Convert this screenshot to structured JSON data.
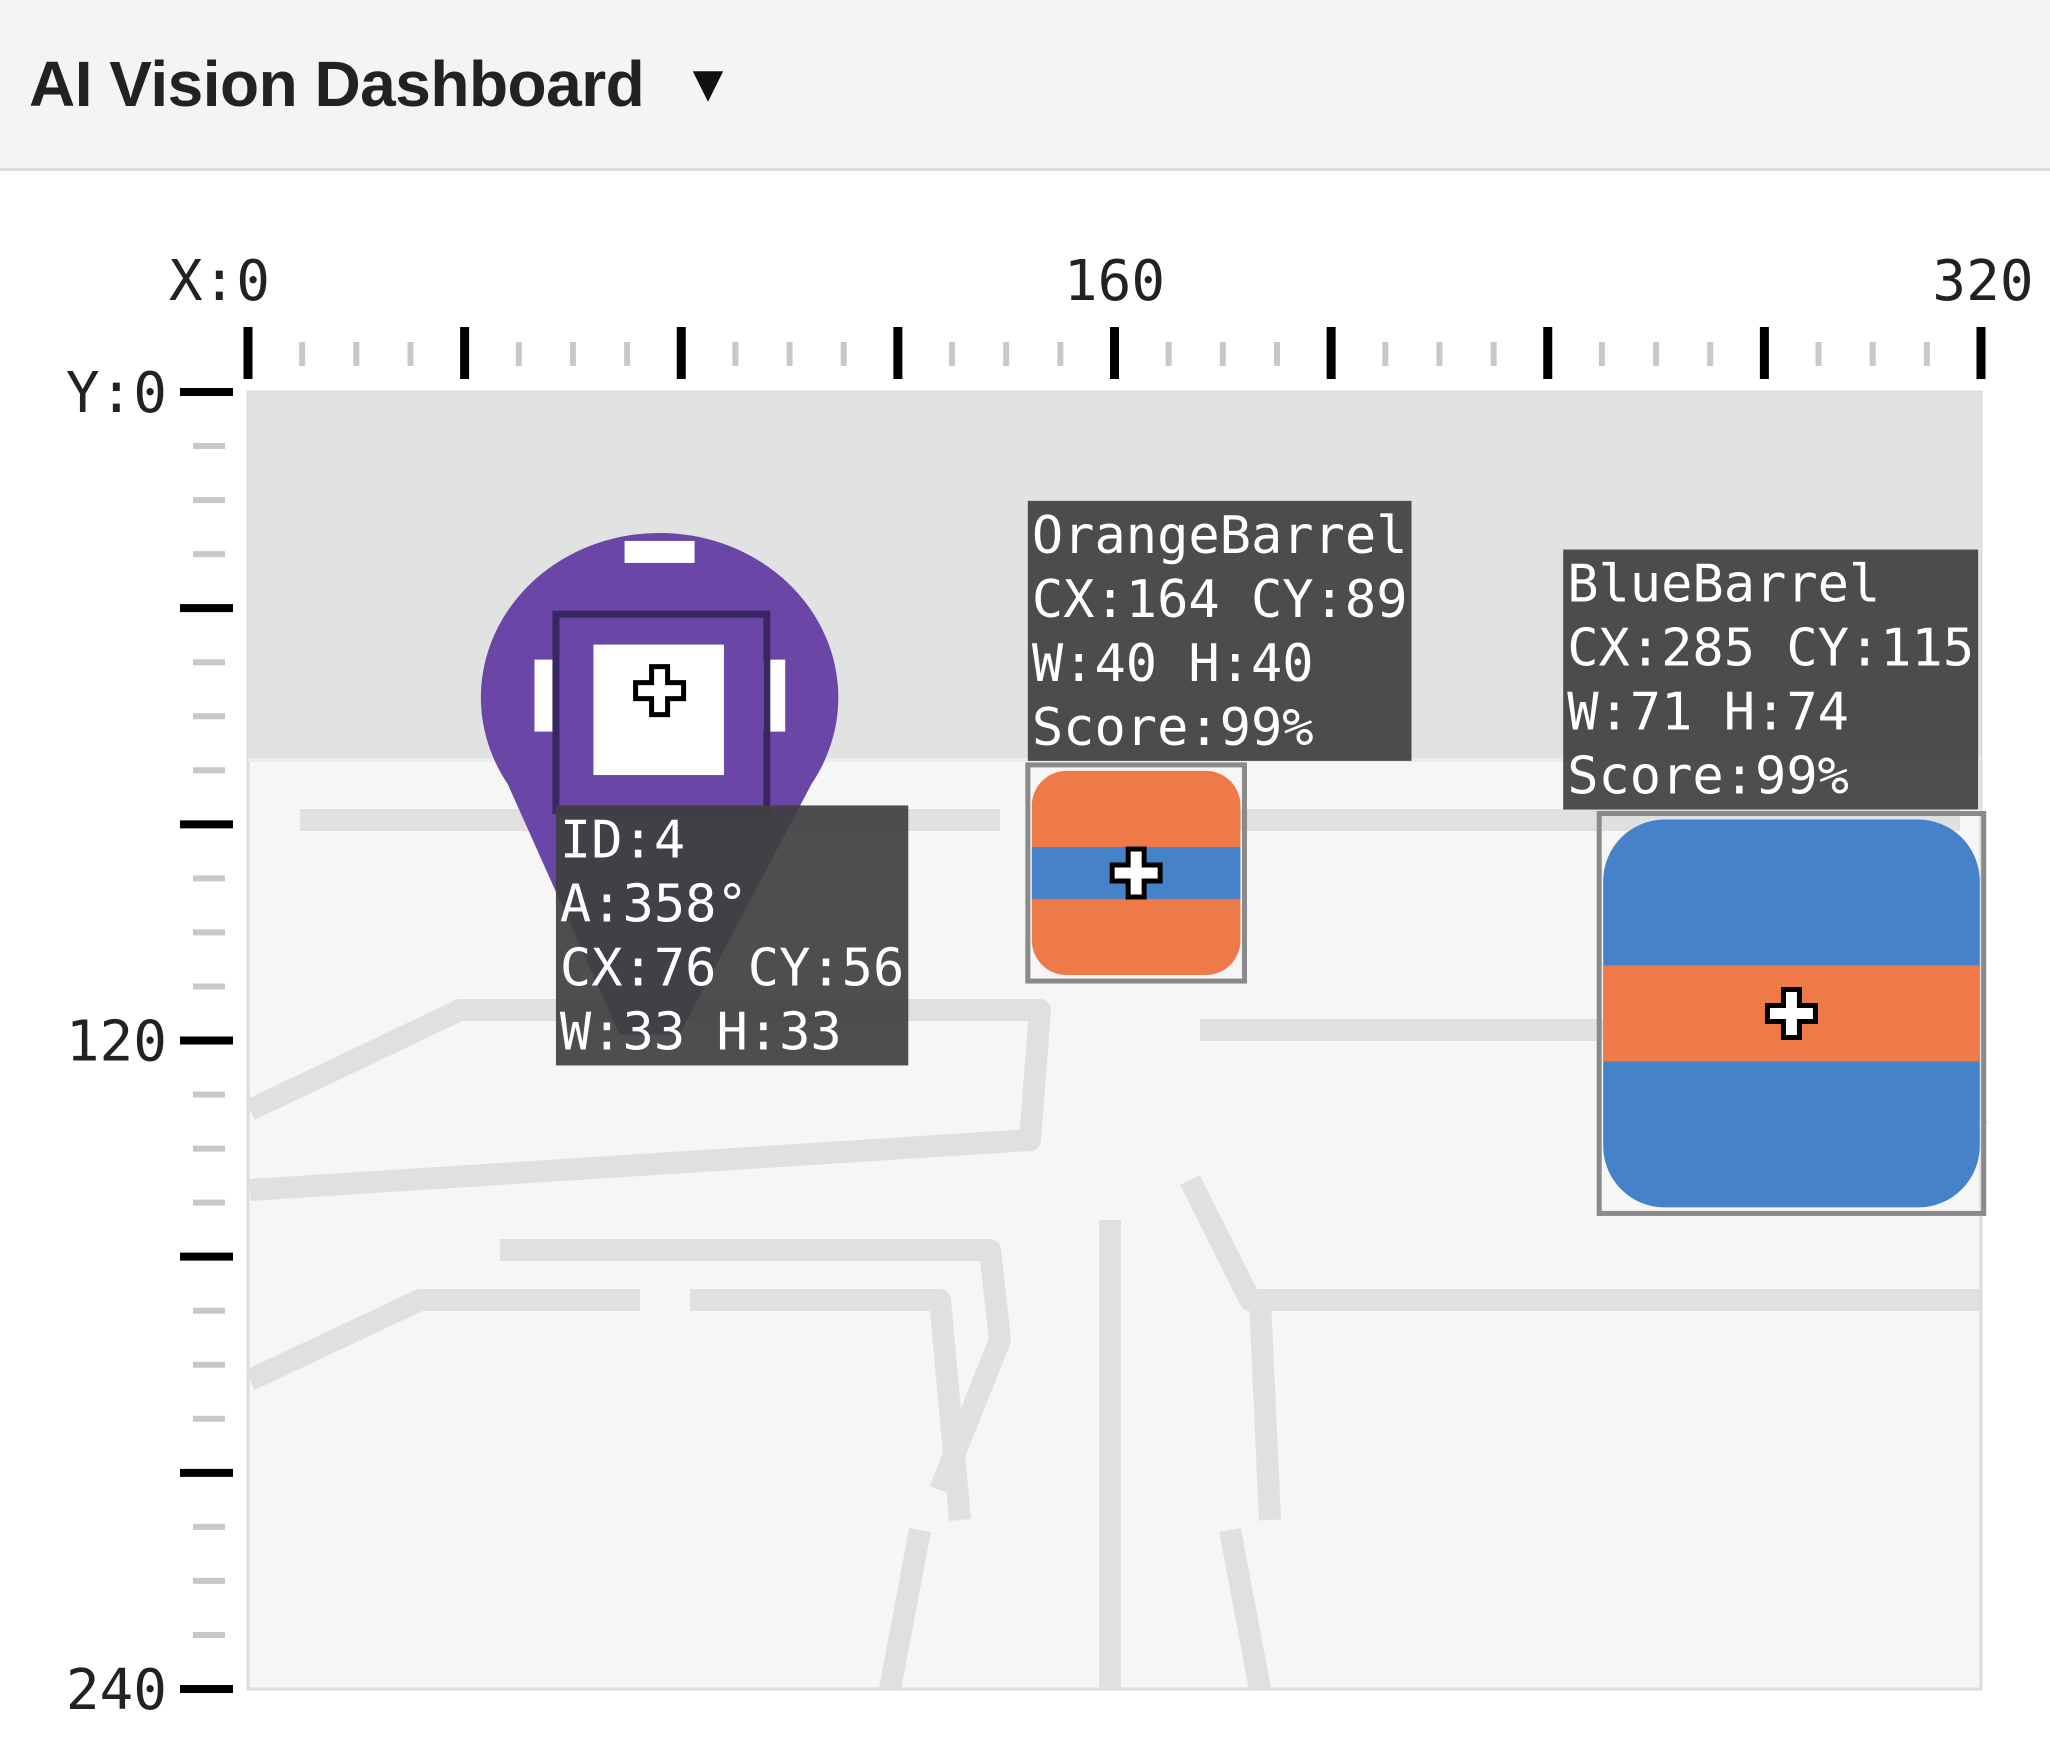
{
  "header": {
    "title": "AI Vision Dashboard",
    "dropdown_icon": "triangle-down-icon"
  },
  "viewer": {
    "x_range": [
      0,
      320
    ],
    "y_range": [
      0,
      240
    ],
    "x_labels": [
      {
        "value": 0,
        "text": "X:0"
      },
      {
        "value": 160,
        "text": "160"
      },
      {
        "value": 320,
        "text": "320"
      }
    ],
    "y_labels": [
      {
        "value": 0,
        "text": "Y:0"
      },
      {
        "value": 120,
        "text": "120"
      },
      {
        "value": 240,
        "text": "240"
      }
    ],
    "major_tick_step": 40,
    "minor_tick_step": 10,
    "colors": {
      "sky": "#e1e2e2",
      "floor": "#f6f6f6",
      "floor_lines": "#e0e0e0",
      "label_bg": "#3f3f3f",
      "label_text": "#ffffff",
      "box": "#8a8a8a",
      "tag_purple": "#6a46a6",
      "orange": "#ee7a4a",
      "blue": "#4682c8"
    }
  },
  "objects": [
    {
      "type": "apriltag",
      "cx": 76,
      "cy": 56,
      "w": 33,
      "h": 33,
      "lines": [
        "ID:4",
        "A:358°",
        "CX:76 CY:56",
        "W:33 H:33"
      ]
    },
    {
      "type": "orange-barrel",
      "cx": 164,
      "cy": 89,
      "w": 40,
      "h": 40,
      "lines": [
        "OrangeBarrel",
        "CX:164 CY:89",
        "W:40 H:40",
        "Score:99%"
      ]
    },
    {
      "type": "blue-barrel",
      "cx": 285,
      "cy": 115,
      "w": 71,
      "h": 74,
      "lines": [
        "BlueBarrel",
        "CX:285 CY:115",
        "W:71 H:74",
        "Score:99%"
      ]
    }
  ]
}
